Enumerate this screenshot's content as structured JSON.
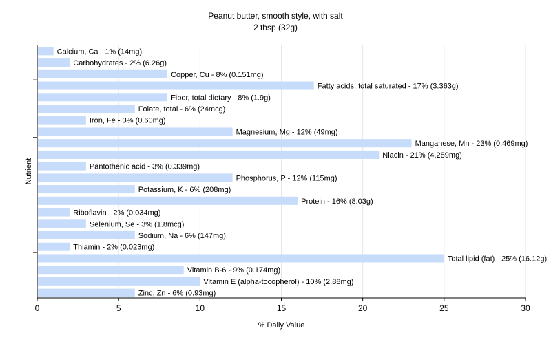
{
  "chart_data": {
    "type": "bar",
    "orientation": "horizontal",
    "title": "Peanut butter, smooth style, with salt",
    "subtitle": "2 tbsp (32g)",
    "xlabel": "% Daily Value",
    "ylabel": "Nutrient",
    "xlim": [
      0,
      30
    ],
    "xticks": [
      0,
      5,
      10,
      15,
      20,
      25,
      30
    ],
    "grid": true,
    "bar_color": "#c6dcfa",
    "categories": [
      "Calcium, Ca",
      "Carbohydrates",
      "Copper, Cu",
      "Fatty acids, total saturated",
      "Fiber, total dietary",
      "Folate, total",
      "Iron, Fe",
      "Magnesium, Mg",
      "Manganese, Mn",
      "Niacin",
      "Pantothenic acid",
      "Phosphorus, P",
      "Potassium, K",
      "Protein",
      "Riboflavin",
      "Selenium, Se",
      "Sodium, Na",
      "Thiamin",
      "Total lipid (fat)",
      "Vitamin B-6",
      "Vitamin E (alpha-tocopherol)",
      "Zinc, Zn"
    ],
    "values": [
      1,
      2,
      8,
      17,
      8,
      6,
      3,
      12,
      23,
      21,
      3,
      12,
      6,
      16,
      2,
      3,
      6,
      2,
      25,
      9,
      10,
      6
    ],
    "labels": [
      "Calcium, Ca - 1% (14mg)",
      "Carbohydrates - 2% (6.26g)",
      "Copper, Cu - 8% (0.151mg)",
      "Fatty acids, total saturated - 17% (3.363g)",
      "Fiber, total dietary - 8% (1.9g)",
      "Folate, total - 6% (24mcg)",
      "Iron, Fe - 3% (0.60mg)",
      "Magnesium, Mg - 12% (49mg)",
      "Manganese, Mn - 23% (0.469mg)",
      "Niacin - 21% (4.289mg)",
      "Pantothenic acid - 3% (0.339mg)",
      "Phosphorus, P - 12% (115mg)",
      "Potassium, K - 6% (208mg)",
      "Protein - 16% (8.03g)",
      "Riboflavin - 2% (0.034mg)",
      "Selenium, Se - 3% (1.8mcg)",
      "Sodium, Na - 6% (147mg)",
      "Thiamin - 2% (0.023mg)",
      "Total lipid (fat) - 25% (16.12g)",
      "Vitamin B-6 - 9% (0.174mg)",
      "Vitamin E (alpha-tocopherol) - 10% (2.88mg)",
      "Zinc, Zn - 6% (0.93mg)"
    ]
  }
}
